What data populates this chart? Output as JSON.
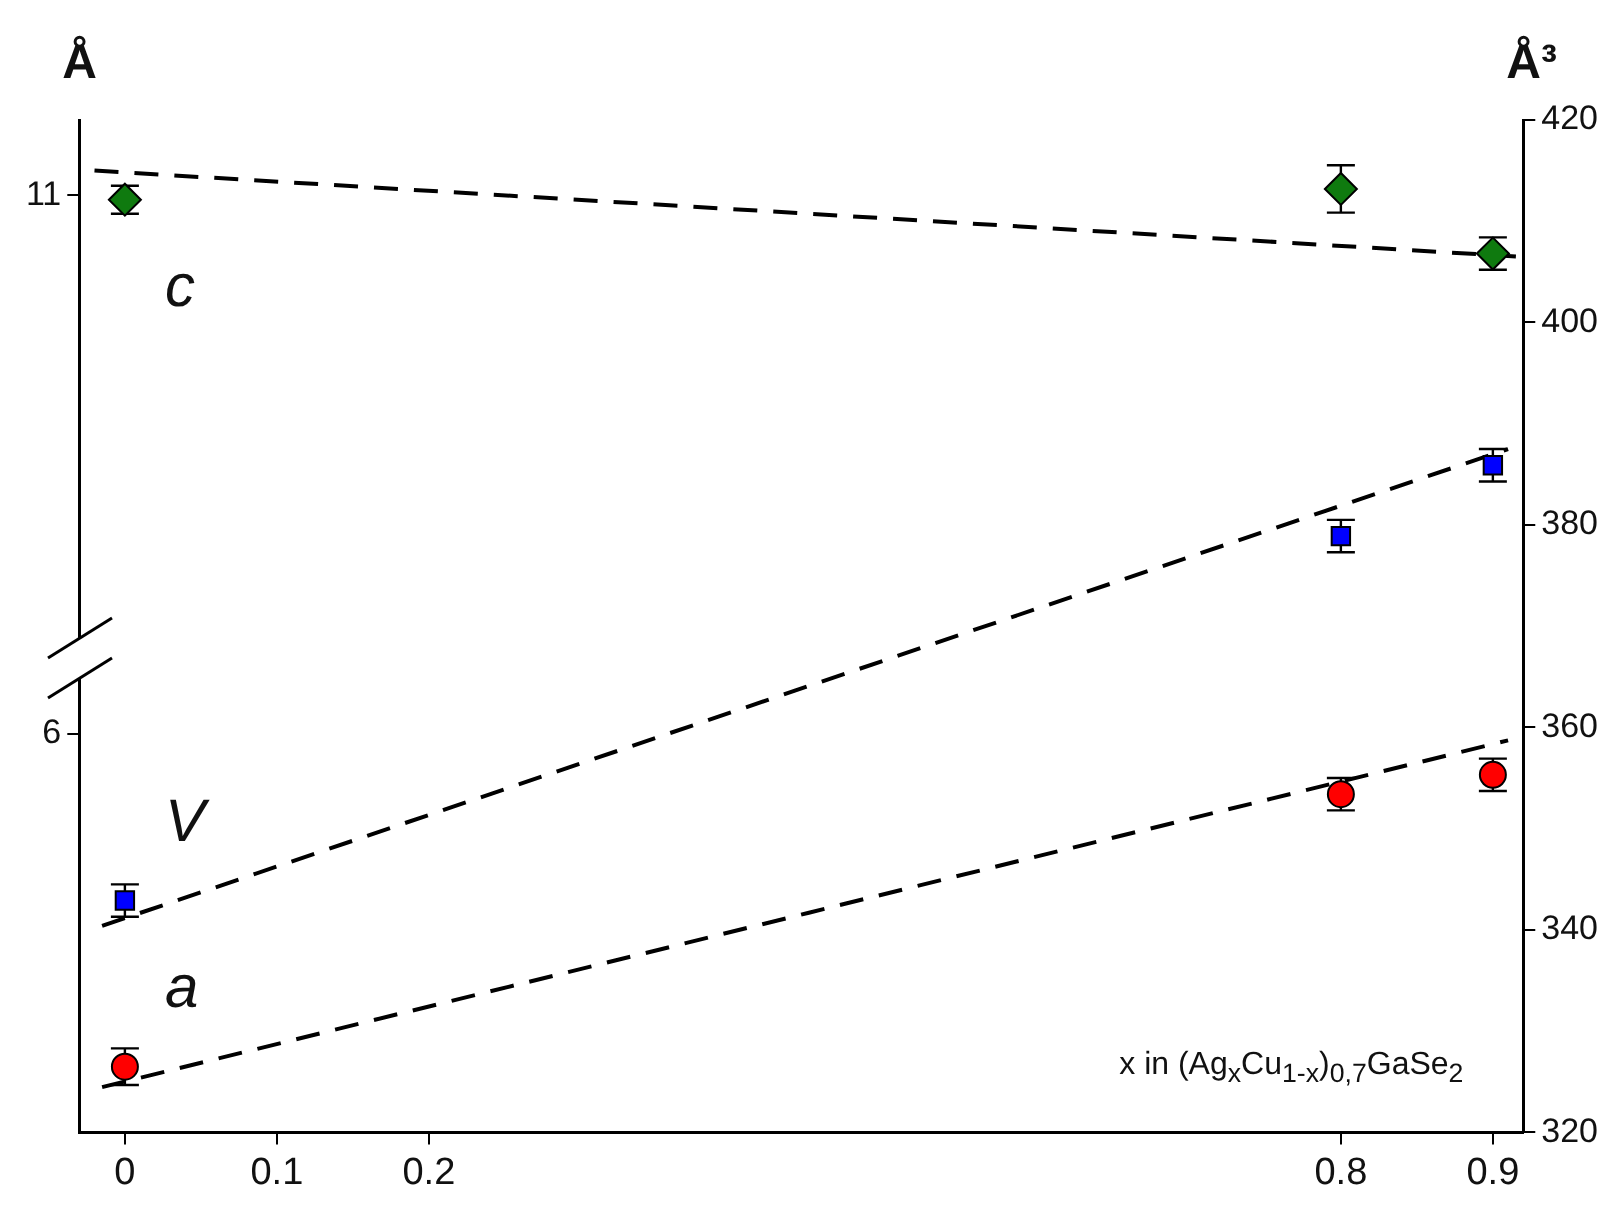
{
  "chart_data": {
    "type": "scatter",
    "xlabel": "x in (Ag$_{x}$Cu$_{1-x}$)$_{0,7}$GaSe$_{2}$",
    "ylabel": "Å",
    "y2label": "Å³",
    "xlim": [
      -0.03,
      0.92
    ],
    "xticks": [
      0,
      0.1,
      0.2,
      0.8,
      0.9
    ],
    "ylim": [
      2.3,
      11.7
    ],
    "yticks": [
      6,
      11
    ],
    "y2lim": [
      320,
      420
    ],
    "y2ticks": [
      320,
      340,
      360,
      380,
      400,
      420
    ],
    "grid": false,
    "legend": false,
    "series": [
      {
        "name": "c",
        "type": "scatter",
        "marker": "diamond",
        "color": "#0f7a0f",
        "x": [
          0,
          0.8,
          0.9
        ],
        "values": [
          10.96,
          11.06,
          10.46
        ],
        "errors": [
          0.13,
          0.22,
          0.15
        ]
      },
      {
        "name": "V",
        "type": "scatter",
        "marker": "square",
        "color": "#0000ff",
        "axis": "y2",
        "x": [
          0,
          0.8,
          0.9
        ],
        "values": [
          342.9,
          378.9,
          385.9
        ],
        "errors": [
          1.6,
          1.6,
          1.6
        ]
      },
      {
        "name": "a",
        "type": "scatter",
        "marker": "circle",
        "color": "#ff0000",
        "x": [
          0,
          0.8,
          0.9
        ],
        "values": [
          2.91,
          5.44,
          5.62
        ],
        "errors": [
          0.17,
          0.15,
          0.15
        ]
      },
      {
        "type": "line",
        "color": "#000000",
        "line_style": "dashed",
        "marker": "none",
        "x": [
          -0.02,
          0.45,
          0.918
        ],
        "values": [
          11.23,
          10.83,
          10.43
        ]
      },
      {
        "type": "line",
        "color": "#000000",
        "line_style": "dashed",
        "marker": "none",
        "axis": "y2",
        "x": [
          -0.015,
          0.45,
          0.91
        ],
        "values": [
          340.4,
          364.1,
          387.5
        ]
      },
      {
        "type": "line",
        "color": "#000000",
        "line_style": "dashed",
        "marker": "none",
        "x": [
          -0.015,
          0.45,
          0.91
        ],
        "values": [
          2.72,
          4.34,
          5.94
        ]
      }
    ]
  }
}
